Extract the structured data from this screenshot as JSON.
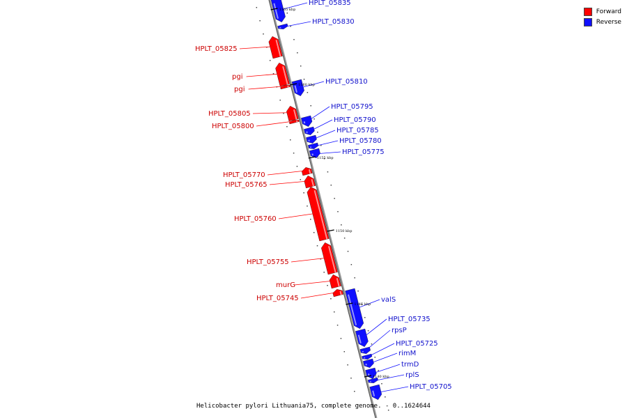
{
  "legend": {
    "forward_label": "Forward",
    "reverse_label": "Reverse",
    "forward_color": "#ff0000",
    "reverse_color": "#1010ff"
  },
  "caption": "Helicobacter pylori Lithuania75, complete genome. - 0..1624644",
  "scale_ticks": [
    "1165 kbp",
    "1160 kbp",
    "1155 kbp",
    "1150 kbp",
    "1145 kbp",
    "1140 kbp"
  ],
  "genes": [
    {
      "name": "HPLT_05835",
      "strand": "reverse"
    },
    {
      "name": "HPLT_05830",
      "strand": "reverse"
    },
    {
      "name": "HPLT_05825",
      "strand": "forward"
    },
    {
      "name": "pgi",
      "strand": "forward"
    },
    {
      "name": "pgi",
      "strand": "forward"
    },
    {
      "name": "HPLT_05810",
      "strand": "reverse"
    },
    {
      "name": "HPLT_05805",
      "strand": "forward"
    },
    {
      "name": "HPLT_05800",
      "strand": "forward"
    },
    {
      "name": "HPLT_05795",
      "strand": "reverse"
    },
    {
      "name": "HPLT_05790",
      "strand": "reverse"
    },
    {
      "name": "HPLT_05785",
      "strand": "reverse"
    },
    {
      "name": "HPLT_05780",
      "strand": "reverse"
    },
    {
      "name": "HPLT_05775",
      "strand": "reverse"
    },
    {
      "name": "HPLT_05770",
      "strand": "forward"
    },
    {
      "name": "HPLT_05765",
      "strand": "forward"
    },
    {
      "name": "HPLT_05760",
      "strand": "forward"
    },
    {
      "name": "HPLT_05755",
      "strand": "forward"
    },
    {
      "name": "murG",
      "strand": "forward"
    },
    {
      "name": "HPLT_05745",
      "strand": "forward"
    },
    {
      "name": "valS",
      "strand": "reverse"
    },
    {
      "name": "HPLT_05735",
      "strand": "reverse"
    },
    {
      "name": "rpsP",
      "strand": "reverse"
    },
    {
      "name": "HPLT_05725",
      "strand": "reverse"
    },
    {
      "name": "rimM",
      "strand": "reverse"
    },
    {
      "name": "trmD",
      "strand": "reverse"
    },
    {
      "name": "rplS",
      "strand": "reverse"
    },
    {
      "name": "HPLT_05705",
      "strand": "reverse"
    }
  ]
}
